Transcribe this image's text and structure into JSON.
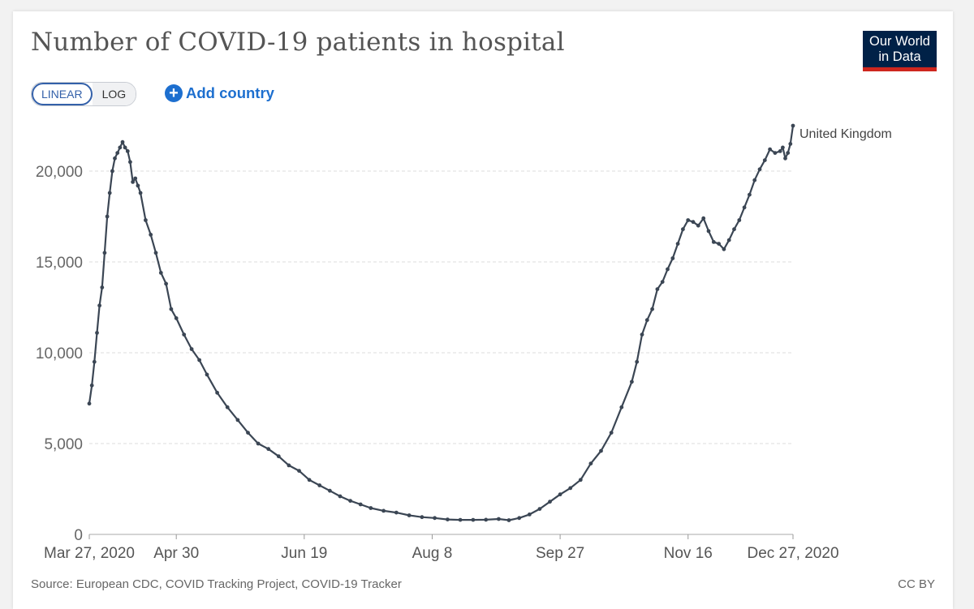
{
  "header": {
    "title": "Number of COVID-19 patients in hospital",
    "logo_line1": "Our World",
    "logo_line2": "in Data"
  },
  "controls": {
    "linear_label": "LINEAR",
    "log_label": "LOG",
    "add_country_label": "Add country",
    "plus_glyph": "+"
  },
  "footer": {
    "source": "Source: European CDC, COVID Tracking Project, COVID-19 Tracker",
    "license": "CC BY"
  },
  "colors": {
    "series": "#3b4654",
    "grid": "#dddddd",
    "brand_navy": "#002147",
    "brand_red": "#ce261e",
    "accent_blue": "#1d6fcf"
  },
  "chart_data": {
    "type": "line",
    "title": "Number of COVID-19 patients in hospital",
    "xlabel": "",
    "ylabel": "",
    "ylim": [
      0,
      22500
    ],
    "yticks": [
      0,
      5000,
      10000,
      15000,
      20000
    ],
    "ytick_labels": [
      "0",
      "5,000",
      "10,000",
      "15,000",
      "20,000"
    ],
    "x_day_range": [
      0,
      275
    ],
    "xticks": [
      {
        "day": 0,
        "label": "Mar 27, 2020"
      },
      {
        "day": 34,
        "label": "Apr 30"
      },
      {
        "day": 84,
        "label": "Jun 19"
      },
      {
        "day": 134,
        "label": "Aug 8"
      },
      {
        "day": 184,
        "label": "Sep 27"
      },
      {
        "day": 234,
        "label": "Nov 16"
      },
      {
        "day": 275,
        "label": "Dec 27, 2020"
      }
    ],
    "grid": true,
    "legend": "inline-end",
    "series": [
      {
        "name": "United Kingdom",
        "days": [
          0,
          1,
          2,
          3,
          4,
          5,
          6,
          7,
          8,
          9,
          10,
          11,
          12,
          13,
          14,
          15,
          16,
          17,
          18,
          19,
          20,
          22,
          24,
          26,
          28,
          30,
          32,
          34,
          37,
          40,
          43,
          46,
          50,
          54,
          58,
          62,
          66,
          70,
          74,
          78,
          82,
          86,
          90,
          94,
          98,
          102,
          106,
          110,
          115,
          120,
          125,
          130,
          135,
          140,
          145,
          150,
          155,
          160,
          164,
          168,
          172,
          176,
          180,
          184,
          188,
          192,
          196,
          200,
          204,
          208,
          212,
          214,
          216,
          218,
          220,
          222,
          224,
          226,
          228,
          230,
          232,
          234,
          236,
          238,
          240,
          242,
          244,
          246,
          248,
          250,
          252,
          254,
          256,
          258,
          260,
          262,
          264,
          266,
          268,
          270,
          271,
          272,
          273,
          274,
          275
        ],
        "values": [
          7200,
          8200,
          9500,
          11100,
          12600,
          13600,
          15500,
          17500,
          18800,
          20000,
          20700,
          21000,
          21300,
          21600,
          21300,
          21100,
          20500,
          19400,
          19600,
          19200,
          18800,
          17300,
          16500,
          15500,
          14400,
          13800,
          12400,
          11900,
          11000,
          10200,
          9600,
          8800,
          7800,
          7000,
          6300,
          5600,
          5000,
          4700,
          4300,
          3800,
          3500,
          3000,
          2700,
          2400,
          2100,
          1850,
          1650,
          1450,
          1300,
          1200,
          1050,
          950,
          900,
          820,
          800,
          800,
          810,
          850,
          780,
          900,
          1100,
          1400,
          1800,
          2200,
          2550,
          3000,
          3900,
          4600,
          5600,
          7000,
          8400,
          9500,
          11000,
          11800,
          12400,
          13500,
          13900,
          14600,
          15200,
          16000,
          16800,
          17300,
          17200,
          17000,
          17400,
          16700,
          16100,
          16000,
          15700,
          16200,
          16800,
          17300,
          18000,
          18700,
          19500,
          20100,
          20600,
          21200,
          21000,
          21100,
          21300,
          20700,
          21000,
          21500,
          22500
        ]
      }
    ]
  }
}
